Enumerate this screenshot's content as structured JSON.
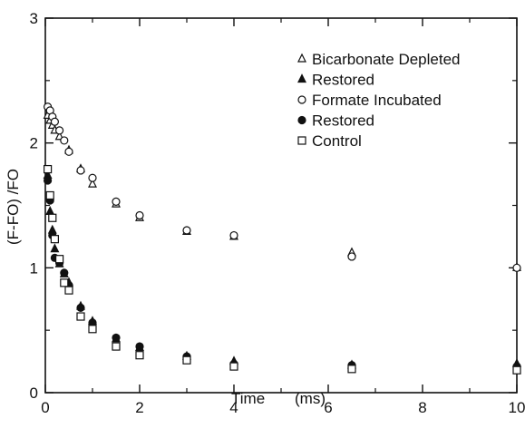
{
  "chart_data": {
    "type": "scatter",
    "title": "",
    "xlabel": "Time",
    "xlabel_unit": "(ms)",
    "ylabel": "(F-FO) /FO",
    "xlim": [
      0,
      10
    ],
    "ylim": [
      0,
      3
    ],
    "xticks": [
      0,
      2,
      4,
      6,
      8,
      10
    ],
    "yticks": [
      0,
      1,
      2,
      3
    ],
    "grid": false,
    "legend_position": "top-right",
    "series": [
      {
        "name": "Bicarbonate Depleted",
        "marker": "triangle-open",
        "x": [
          0.05,
          0.1,
          0.15,
          0.2,
          0.3,
          0.5,
          0.75,
          1.0,
          1.5,
          2.0,
          3.0,
          4.0,
          6.5,
          10.0
        ],
        "y": [
          2.22,
          2.18,
          2.14,
          2.1,
          2.05,
          1.94,
          1.79,
          1.67,
          1.51,
          1.4,
          1.29,
          1.25,
          1.12,
          1.0
        ]
      },
      {
        "name": "Restored",
        "marker": "triangle-filled",
        "x": [
          0.05,
          0.1,
          0.15,
          0.2,
          0.3,
          0.4,
          0.5,
          0.75,
          1.0,
          1.5,
          2.0,
          3.0,
          4.0,
          6.5,
          10.0
        ],
        "y": [
          1.74,
          1.45,
          1.3,
          1.15,
          1.03,
          0.95,
          0.88,
          0.69,
          0.57,
          0.43,
          0.36,
          0.29,
          0.25,
          0.22,
          0.23
        ]
      },
      {
        "name": "Formate Incubated",
        "marker": "circle-open",
        "x": [
          0.05,
          0.1,
          0.15,
          0.2,
          0.3,
          0.4,
          0.5,
          0.75,
          1.0,
          1.5,
          2.0,
          3.0,
          4.0,
          6.5,
          10.0
        ],
        "y": [
          2.29,
          2.26,
          2.21,
          2.17,
          2.1,
          2.02,
          1.93,
          1.78,
          1.72,
          1.53,
          1.42,
          1.3,
          1.26,
          1.09,
          1.0
        ]
      },
      {
        "name": "Restored",
        "marker": "circle-filled",
        "x": [
          0.05,
          0.1,
          0.15,
          0.2,
          0.3,
          0.4,
          0.5,
          0.75,
          1.0,
          1.5,
          2.0,
          3.0,
          4.0,
          6.5,
          10.0
        ],
        "y": [
          1.7,
          1.54,
          1.26,
          1.08,
          1.04,
          0.96,
          0.86,
          0.68,
          0.56,
          0.44,
          0.37,
          0.29,
          0.23,
          0.22,
          0.21
        ]
      },
      {
        "name": "Control",
        "marker": "square-open",
        "x": [
          0.05,
          0.1,
          0.15,
          0.2,
          0.3,
          0.4,
          0.5,
          0.75,
          1.0,
          1.5,
          2.0,
          3.0,
          4.0,
          6.5,
          10.0
        ],
        "y": [
          1.79,
          1.58,
          1.4,
          1.23,
          1.07,
          0.88,
          0.82,
          0.61,
          0.51,
          0.37,
          0.3,
          0.26,
          0.21,
          0.19,
          0.18
        ]
      }
    ]
  }
}
